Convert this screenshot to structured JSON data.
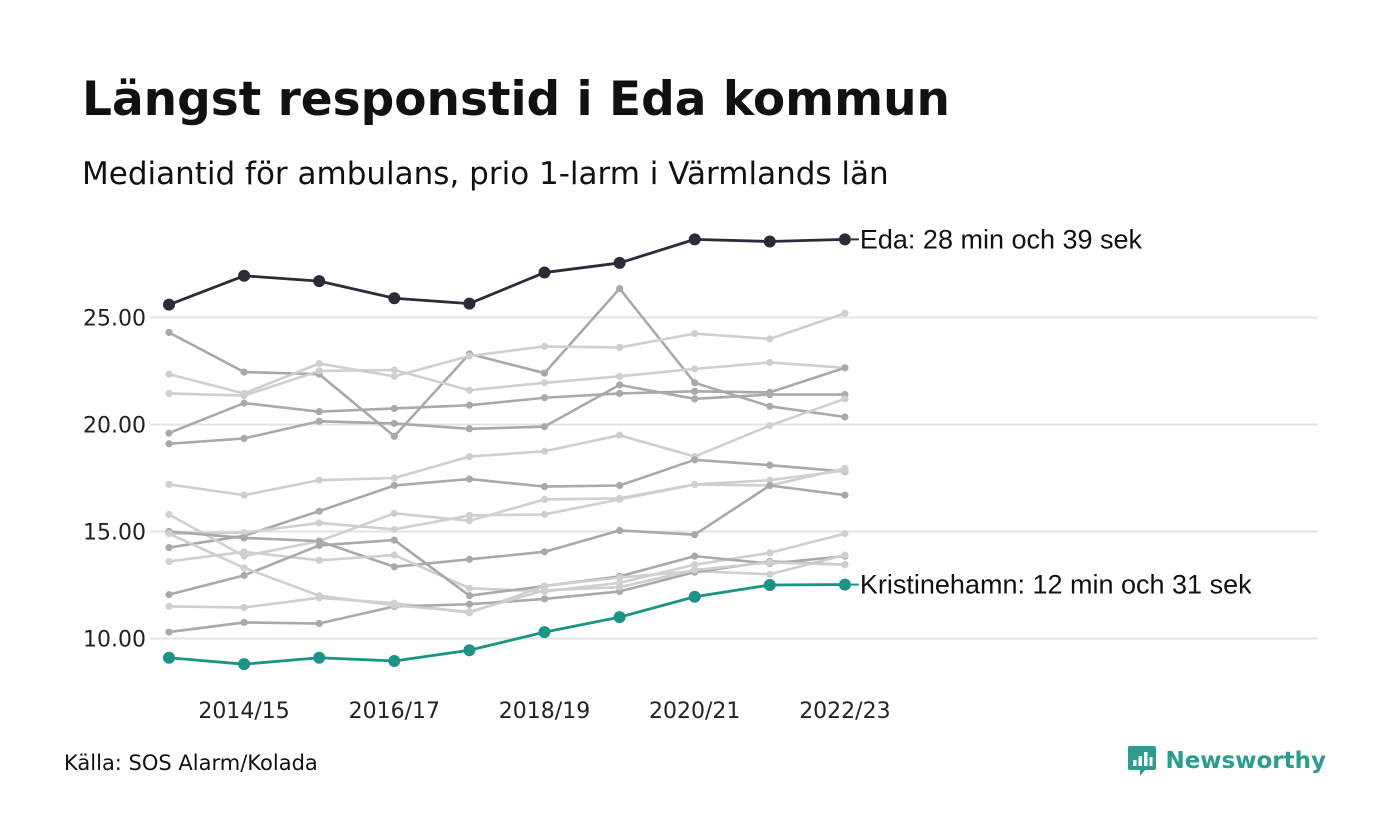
{
  "header": {
    "title": "Längst responstid i Eda kommun",
    "subtitle": "Mediantid för ambulans, prio 1-larm i Värmlands län"
  },
  "footer": {
    "source": "Källa: SOS Alarm/Kolada",
    "brand": "Newsworthy",
    "brand_icon": "newsworthy-logo-icon"
  },
  "colors": {
    "highlight_top": "#2b2b3a",
    "highlight_bottom": "#1a9485",
    "grey_dark": "#a9a9a9",
    "grey_light": "#cfcfcf",
    "grid": "#e3e3e3",
    "brand": "#2a9d8f"
  },
  "chart_data": {
    "type": "line",
    "x": [
      "2013/14",
      "2014/15",
      "2015/16",
      "2016/17",
      "2017/18",
      "2018/19",
      "2019/20",
      "2020/21",
      "2021/22",
      "2022/23"
    ],
    "x_tick_labels": [
      "2014/15",
      "2016/17",
      "2018/19",
      "2020/21",
      "2022/23"
    ],
    "y_ticks": [
      "10.00",
      "15.00",
      "20.00",
      "25.00"
    ],
    "ylim": [
      8.5,
      29.5
    ],
    "grid": "horizontal",
    "highlighted": [
      {
        "name": "Eda",
        "label": "Eda: 28 min och 39 sek",
        "values": [
          25.6,
          26.95,
          26.7,
          25.9,
          25.65,
          27.1,
          27.55,
          28.65,
          28.55,
          28.65
        ]
      },
      {
        "name": "Kristinehamn",
        "label": "Kristinehamn: 12 min och 31 sek",
        "values": [
          9.1,
          8.8,
          9.1,
          8.95,
          9.45,
          10.3,
          11.0,
          11.95,
          12.5,
          12.52
        ]
      }
    ],
    "other_series": [
      {
        "values": [
          24.3,
          22.45,
          22.35,
          19.45,
          23.3,
          22.4,
          26.35,
          21.95,
          20.85,
          20.35
        ],
        "tone": "dark"
      },
      {
        "values": [
          22.35,
          21.45,
          22.85,
          22.25,
          23.2,
          23.65,
          23.6,
          24.25,
          24.0,
          25.2
        ],
        "tone": "light"
      },
      {
        "values": [
          21.45,
          21.35,
          22.5,
          22.55,
          21.6,
          21.95,
          22.25,
          22.6,
          22.9,
          22.65
        ],
        "tone": "light"
      },
      {
        "values": [
          19.6,
          21.0,
          20.6,
          20.75,
          20.9,
          21.25,
          21.45,
          21.55,
          21.5,
          22.65
        ],
        "tone": "dark"
      },
      {
        "values": [
          19.1,
          19.35,
          20.15,
          20.05,
          19.8,
          19.9,
          21.85,
          21.2,
          21.4,
          21.4
        ],
        "tone": "dark"
      },
      {
        "values": [
          17.2,
          16.7,
          17.4,
          17.5,
          18.5,
          18.75,
          19.5,
          18.5,
          19.95,
          21.2
        ],
        "tone": "light"
      },
      {
        "values": [
          14.25,
          14.8,
          15.95,
          17.15,
          17.45,
          17.1,
          17.15,
          18.35,
          18.1,
          17.8
        ],
        "tone": "dark"
      },
      {
        "values": [
          15.8,
          13.85,
          14.55,
          15.85,
          15.5,
          16.5,
          16.55,
          17.2,
          17.15,
          17.95
        ],
        "tone": "light"
      },
      {
        "values": [
          14.9,
          14.95,
          15.4,
          15.1,
          15.75,
          15.8,
          16.5,
          17.2,
          17.4,
          17.85
        ],
        "tone": "light"
      },
      {
        "values": [
          15.0,
          14.7,
          14.55,
          13.35,
          13.7,
          14.05,
          15.05,
          14.85,
          17.15,
          16.7
        ],
        "tone": "dark"
      },
      {
        "values": [
          13.6,
          14.05,
          13.65,
          13.9,
          12.35,
          12.2,
          12.6,
          13.45,
          14.0,
          14.9
        ],
        "tone": "light"
      },
      {
        "values": [
          12.05,
          12.95,
          14.35,
          14.6,
          12.0,
          12.45,
          12.9,
          13.85,
          13.5,
          13.85
        ],
        "tone": "dark"
      },
      {
        "values": [
          11.5,
          11.45,
          11.9,
          11.65,
          11.2,
          12.45,
          12.85,
          13.15,
          13.0,
          13.9
        ],
        "tone": "light"
      },
      {
        "values": [
          10.3,
          10.75,
          10.7,
          11.5,
          11.6,
          11.85,
          12.2,
          13.1,
          13.6,
          13.45
        ],
        "tone": "dark"
      },
      {
        "values": [
          14.9,
          13.3,
          12.0,
          11.55,
          11.25,
          12.25,
          12.4,
          13.2,
          13.55,
          13.45
        ],
        "tone": "light"
      }
    ]
  }
}
